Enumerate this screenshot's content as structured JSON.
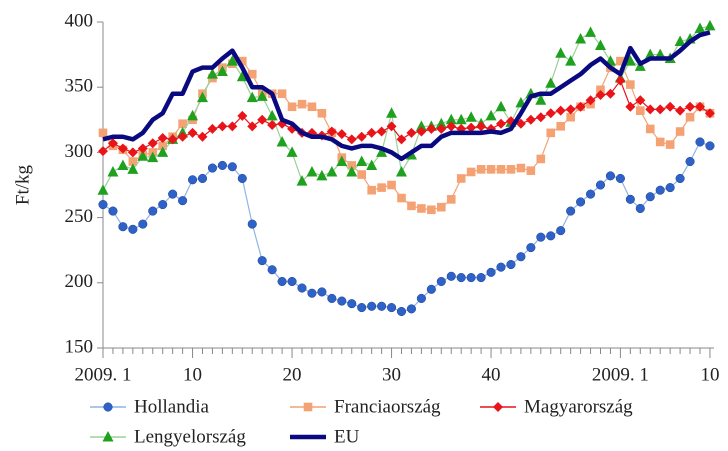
{
  "chart_data": {
    "type": "line",
    "y_label": "Ft/kg",
    "categories": [
      "2009. 1",
      null,
      null,
      null,
      null,
      null,
      null,
      null,
      null,
      "10",
      null,
      null,
      null,
      null,
      null,
      null,
      null,
      null,
      null,
      "20",
      null,
      null,
      null,
      null,
      null,
      null,
      null,
      null,
      null,
      "30",
      null,
      null,
      null,
      null,
      null,
      null,
      null,
      null,
      null,
      "40",
      null,
      null,
      null,
      null,
      null,
      null,
      null,
      null,
      null,
      null,
      null,
      null,
      "2009. 1",
      null,
      null,
      null,
      null,
      null,
      null,
      null,
      null,
      "10"
    ],
    "ylim": [
      150,
      400
    ],
    "yticks": [
      150,
      200,
      250,
      300,
      350,
      400
    ],
    "grid": false,
    "legend": "bottom",
    "series": [
      {
        "name": "Hollandia",
        "color": "#2f62c8",
        "line_color": "#8fb4e6",
        "marker": "circle",
        "values": [
          260,
          255,
          243,
          241,
          245,
          255,
          260,
          268,
          263,
          279,
          280,
          288,
          290,
          289,
          280,
          245,
          217,
          210,
          201,
          201,
          196,
          192,
          193,
          188,
          186,
          184,
          181,
          182,
          182,
          181,
          178,
          180,
          188,
          195,
          201,
          205,
          204,
          204,
          204,
          208,
          212,
          214,
          220,
          227,
          235,
          236,
          240,
          255,
          262,
          268,
          275,
          282,
          280,
          264,
          257,
          266,
          271,
          273,
          280,
          293,
          308,
          305
        ]
      },
      {
        "name": "Franciaország",
        "color": "#f4a273",
        "line_color": "#f4a273",
        "marker": "square",
        "values": [
          315,
          305,
          302,
          293,
          298,
          300,
          305,
          312,
          322,
          325,
          345,
          357,
          365,
          368,
          370,
          360,
          345,
          345,
          345,
          335,
          337,
          335,
          330,
          315,
          296,
          290,
          283,
          271,
          273,
          275,
          265,
          259,
          257,
          256,
          258,
          264,
          280,
          285,
          287,
          287,
          287,
          287,
          288,
          286,
          295,
          315,
          320,
          327,
          335,
          337,
          348,
          365,
          370,
          352,
          332,
          318,
          308,
          306,
          316,
          327,
          335,
          330
        ]
      },
      {
        "name": "Magyarország",
        "color": "#e8141a",
        "line_color": "#e8141a",
        "marker": "diamond",
        "values": [
          301,
          307,
          303,
          300,
          303,
          307,
          311,
          310,
          312,
          315,
          312,
          318,
          320,
          320,
          328,
          320,
          325,
          321,
          322,
          318,
          315,
          315,
          313,
          316,
          314,
          310,
          312,
          315,
          316,
          320,
          310,
          315,
          316,
          318,
          318,
          320,
          318,
          319,
          320,
          318,
          322,
          324,
          322,
          325,
          327,
          330,
          332,
          333,
          335,
          340,
          344,
          345,
          355,
          335,
          340,
          333,
          333,
          335,
          332,
          335,
          335,
          330
        ]
      },
      {
        "name": "Lengyelország",
        "color": "#1fa11f",
        "line_color": "#9ad09a",
        "marker": "triangle",
        "values": [
          271,
          285,
          290,
          287,
          297,
          296,
          300,
          310,
          315,
          328,
          342,
          360,
          362,
          370,
          358,
          342,
          343,
          328,
          308,
          300,
          278,
          285,
          282,
          285,
          293,
          285,
          293,
          290,
          300,
          330,
          285,
          298,
          320,
          320,
          322,
          325,
          325,
          327,
          322,
          328,
          335,
          323,
          338,
          345,
          340,
          353,
          376,
          370,
          387,
          392,
          382,
          370,
          357,
          370,
          366,
          375,
          375,
          372,
          385,
          387,
          395,
          397
        ]
      },
      {
        "name": "EU",
        "color": "#0a0a80",
        "line_color": "#0a0a80",
        "marker": "none",
        "values": [
          310,
          312,
          312,
          310,
          315,
          325,
          330,
          345,
          345,
          362,
          365,
          365,
          372,
          378,
          365,
          350,
          350,
          345,
          325,
          322,
          315,
          312,
          312,
          310,
          305,
          303,
          305,
          305,
          303,
          300,
          295,
          300,
          305,
          305,
          312,
          315,
          315,
          315,
          315,
          316,
          315,
          318,
          330,
          343,
          345,
          345,
          350,
          355,
          360,
          367,
          372,
          365,
          360,
          380,
          368,
          372,
          372,
          372,
          378,
          385,
          390,
          392
        ]
      }
    ]
  }
}
